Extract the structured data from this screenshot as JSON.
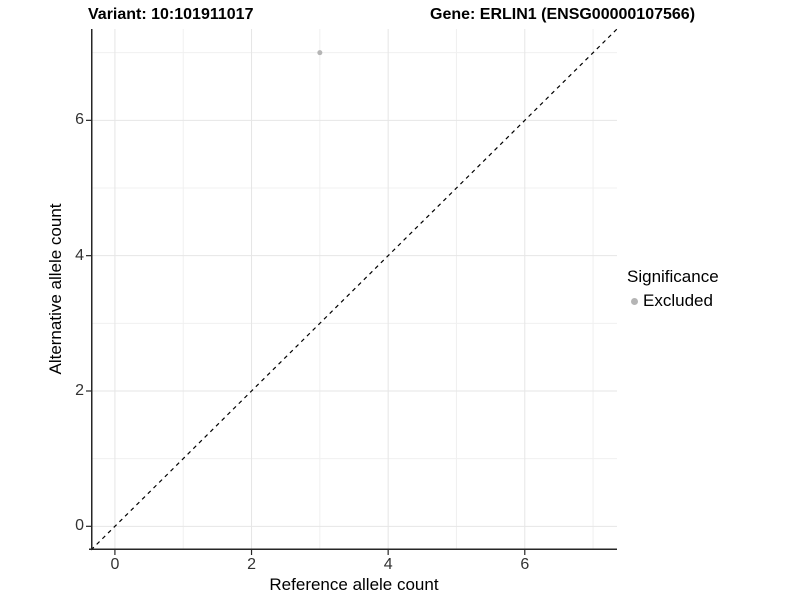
{
  "title": {
    "variant": "Variant: 10:101911017",
    "gene": "Gene: ERLIN1 (ENSG00000107566)"
  },
  "axes": {
    "x": {
      "label": "Reference allele count"
    },
    "y": {
      "label": "Alternative allele count"
    }
  },
  "legend": {
    "title": "Significance",
    "items": [
      {
        "label": "Excluded",
        "color": "#b5b5b5"
      }
    ]
  },
  "colors": {
    "background": "#ffffff",
    "grid_major": "#e6e6e6",
    "grid_minor": "#f0f0f0",
    "axis_line": "#262626",
    "tick_text": "#333333",
    "point": "#b5b5b5",
    "reference_line": "#000000"
  },
  "chart_data": {
    "type": "scatter",
    "title": "Variant: 10:101911017 | Gene: ERLIN1 (ENSG00000107566)",
    "xlabel": "Reference allele count",
    "ylabel": "Alternative allele count",
    "xlim": [
      -0.35,
      7.35
    ],
    "ylim": [
      -0.35,
      7.35
    ],
    "x_ticks": [
      0,
      2,
      4,
      6
    ],
    "y_ticks": [
      0,
      2,
      4,
      6
    ],
    "x_minor_ticks": [
      1,
      3,
      5,
      7
    ],
    "y_minor_ticks": [
      1,
      3,
      5,
      7
    ],
    "grid": true,
    "legend_position": "right",
    "series": [
      {
        "name": "Excluded",
        "color": "#b5b5b5",
        "marker": "circle",
        "points": [
          {
            "x": 3,
            "y": 7
          }
        ]
      }
    ],
    "reference_line": {
      "equation": "y = x",
      "style": "dashed",
      "color": "#000000"
    }
  }
}
